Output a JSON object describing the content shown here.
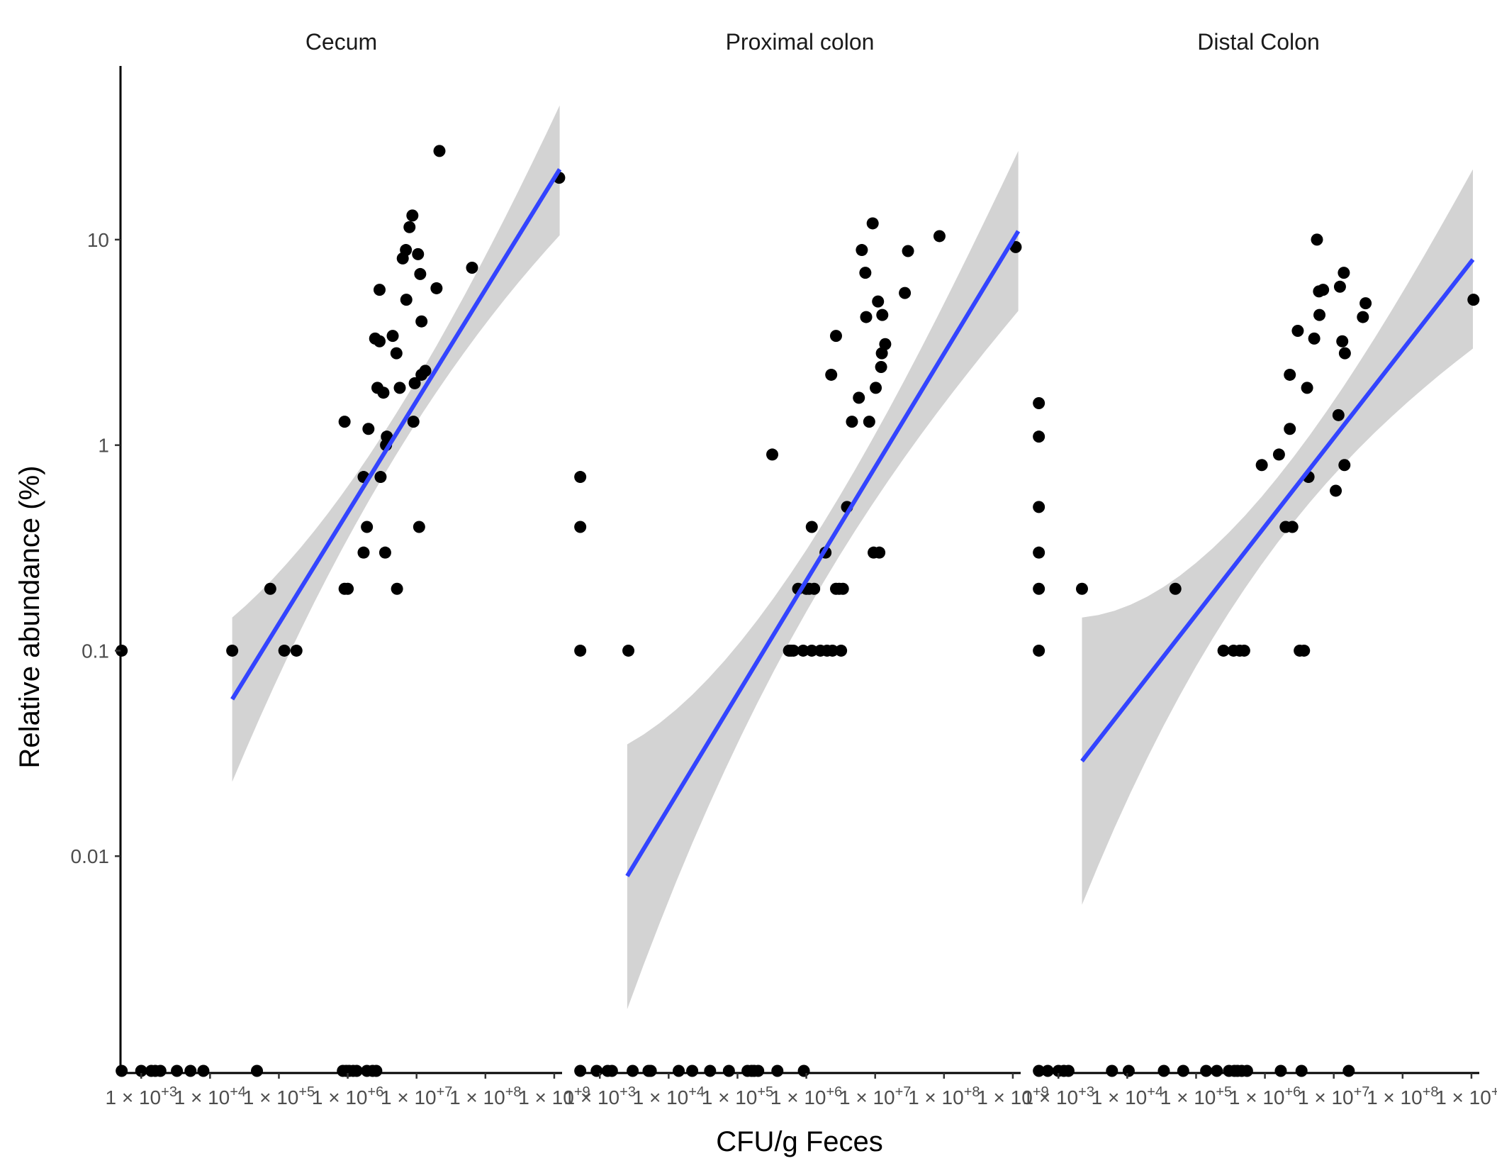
{
  "chart_data": {
    "type": "scatter",
    "xlabel": "CFU/g Feces",
    "ylabel": "Relative abundance (%)",
    "x_scale": "log10",
    "y_scale": "log10",
    "xlim": [
      500,
      1300000000
    ],
    "ylim": [
      0.001,
      70
    ],
    "x_ticks": [
      1000,
      10000,
      100000,
      1000000,
      10000000,
      100000000,
      1000000000
    ],
    "x_tick_labels": [
      "1 × 10^+3",
      "1 × 10^+4",
      "1 × 10^+5",
      "1 × 10^+6",
      "1 × 10^+7",
      "1 × 10^+8",
      "1 × 10^+9"
    ],
    "y_ticks": [
      0.01,
      0.1,
      1,
      10
    ],
    "y_tick_labels": [
      "0.01",
      "0.1",
      "1",
      "10"
    ],
    "grid": false,
    "legend": "none",
    "colors": {
      "points": "#000000",
      "fit_line": "#3344ff",
      "ci_band": "#d3d3d3"
    },
    "panels": [
      {
        "name": "Cecum",
        "fit": {
          "x": [
            21000,
            1200000000
          ],
          "y": [
            0.058,
            22
          ],
          "ci_lower": [
            0.023,
            10.5
          ],
          "ci_upper": [
            0.145,
            45
          ]
        },
        "points": [
          [
            520,
            0.1
          ],
          [
            21000,
            0.1
          ],
          [
            75000,
            0.2
          ],
          [
            120000,
            0.1
          ],
          [
            180000,
            0.1
          ],
          [
            900000,
            1.3
          ],
          [
            900000,
            0.2
          ],
          [
            1000000,
            0.2
          ],
          [
            1700000,
            0.7
          ],
          [
            1700000,
            0.3
          ],
          [
            1900000,
            0.4
          ],
          [
            2000000,
            1.2
          ],
          [
            2500000,
            3.3
          ],
          [
            2700000,
            1.9
          ],
          [
            2900000,
            5.7
          ],
          [
            2900000,
            3.2
          ],
          [
            3000000,
            0.7
          ],
          [
            3300000,
            1.8
          ],
          [
            3500000,
            0.3
          ],
          [
            3600000,
            1.0
          ],
          [
            3700000,
            1.1
          ],
          [
            4500000,
            3.4
          ],
          [
            5100000,
            2.8
          ],
          [
            5200000,
            0.2
          ],
          [
            5700000,
            1.9
          ],
          [
            6300000,
            8.1
          ],
          [
            7000000,
            8.9
          ],
          [
            7100000,
            5.1
          ],
          [
            7900000,
            11.5
          ],
          [
            8700000,
            13.1
          ],
          [
            9000000,
            1.3
          ],
          [
            9400000,
            2.0
          ],
          [
            10500000,
            8.5
          ],
          [
            10900000,
            0.4
          ],
          [
            11300000,
            6.8
          ],
          [
            11800000,
            4.0
          ],
          [
            11800000,
            2.2
          ],
          [
            13400000,
            2.3
          ],
          [
            19500000,
            5.8
          ],
          [
            21500000,
            27
          ],
          [
            64000000,
            7.3
          ],
          [
            1180000000,
            20
          ]
        ],
        "zero_points_x": [
          520,
          1000,
          1400,
          1600,
          1900,
          3300,
          5200,
          8000,
          48000,
          850000,
          950000,
          1050000,
          1200000,
          1350000,
          1900000,
          2300000,
          2600000
        ]
      },
      {
        "name": "Proximal colon",
        "fit": {
          "x": [
            2500,
            1200000000
          ],
          "y": [
            0.008,
            11
          ],
          "ci_lower": [
            0.0018,
            4.5
          ],
          "ci_upper": [
            0.035,
            27
          ]
        },
        "points": [
          [
            520,
            0.7
          ],
          [
            520,
            0.4
          ],
          [
            520,
            0.1
          ],
          [
            2600,
            0.1
          ],
          [
            320000,
            0.9
          ],
          [
            560000,
            0.1
          ],
          [
            600000,
            0.1
          ],
          [
            650000,
            0.1
          ],
          [
            760000,
            0.2
          ],
          [
            900000,
            0.1
          ],
          [
            1000000,
            0.2
          ],
          [
            1100000,
            0.2
          ],
          [
            1200000,
            0.4
          ],
          [
            1200000,
            0.1
          ],
          [
            1300000,
            0.2
          ],
          [
            1600000,
            0.1
          ],
          [
            1900000,
            0.3
          ],
          [
            2000000,
            0.1
          ],
          [
            2300000,
            2.2
          ],
          [
            2400000,
            0.1
          ],
          [
            2700000,
            0.2
          ],
          [
            2700000,
            3.4
          ],
          [
            3000000,
            0.2
          ],
          [
            3200000,
            0.1
          ],
          [
            3400000,
            0.2
          ],
          [
            3900000,
            0.5
          ],
          [
            4600000,
            1.3
          ],
          [
            5800000,
            1.7
          ],
          [
            6400000,
            8.9
          ],
          [
            7200000,
            6.9
          ],
          [
            7400000,
            4.2
          ],
          [
            8200000,
            1.3
          ],
          [
            9200000,
            12
          ],
          [
            9500000,
            0.3
          ],
          [
            10200000,
            1.9
          ],
          [
            11000000,
            5.0
          ],
          [
            11500000,
            0.3
          ],
          [
            12200000,
            2.4
          ],
          [
            12500000,
            2.8
          ],
          [
            12700000,
            4.3
          ],
          [
            14000000,
            3.1
          ],
          [
            27000000,
            5.5
          ],
          [
            30000000,
            8.8
          ],
          [
            86000000,
            10.4
          ],
          [
            1100000000,
            9.2
          ]
        ],
        "zero_points_x": [
          520,
          900,
          1300,
          1500,
          3000,
          5100,
          5500,
          14000,
          22000,
          40000,
          75000,
          140000,
          160000,
          175000,
          200000,
          380000,
          920000
        ]
      },
      {
        "name": "Distal Colon",
        "fit": {
          "x": [
            2200,
            1050000000
          ],
          "y": [
            0.029,
            8.0
          ],
          "ci_lower": [
            0.0058,
            2.95
          ],
          "ci_upper": [
            0.145,
            22
          ]
        },
        "points": [
          [
            520,
            1.6
          ],
          [
            520,
            1.1
          ],
          [
            520,
            0.5
          ],
          [
            520,
            0.3
          ],
          [
            520,
            0.2
          ],
          [
            520,
            0.1
          ],
          [
            2200,
            0.2
          ],
          [
            50000,
            0.2
          ],
          [
            250000,
            0.1
          ],
          [
            350000,
            0.1
          ],
          [
            430000,
            0.1
          ],
          [
            500000,
            0.1
          ],
          [
            900000,
            0.8
          ],
          [
            1600000,
            0.9
          ],
          [
            2000000,
            0.4
          ],
          [
            2300000,
            1.2
          ],
          [
            2300000,
            2.2
          ],
          [
            2500000,
            0.4
          ],
          [
            3000000,
            3.6
          ],
          [
            3200000,
            0.1
          ],
          [
            3700000,
            0.1
          ],
          [
            4100000,
            1.9
          ],
          [
            4300000,
            0.7
          ],
          [
            5200000,
            3.3
          ],
          [
            5700000,
            10
          ],
          [
            6100000,
            5.6
          ],
          [
            6200000,
            4.3
          ],
          [
            7000000,
            5.7
          ],
          [
            10700000,
            0.6
          ],
          [
            11700000,
            1.4
          ],
          [
            12300000,
            5.9
          ],
          [
            13300000,
            3.2
          ],
          [
            14000000,
            6.9
          ],
          [
            14300000,
            0.8
          ],
          [
            14500000,
            2.8
          ],
          [
            26500000,
            4.2
          ],
          [
            29000000,
            4.9
          ],
          [
            1070000000,
            5.1
          ]
        ],
        "zero_points_x": [
          520,
          700,
          1000,
          1200,
          1400,
          6000,
          10500,
          34000,
          65000,
          140000,
          200000,
          300000,
          360000,
          400000,
          460000,
          550000,
          1700000,
          3400000,
          16500000
        ]
      }
    ]
  }
}
